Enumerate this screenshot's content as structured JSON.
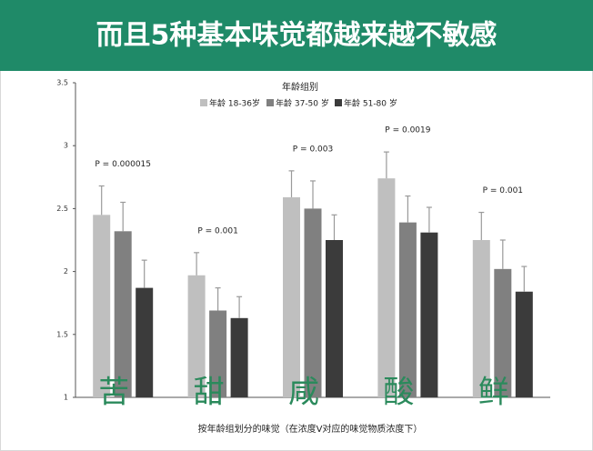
{
  "chart_data": {
    "type": "bar",
    "title": "而且5种基本味觉都越来越不敏感",
    "legend_title": "年龄组别",
    "xlabel": "按年龄组划分的味觉（在浓度V对应的味觉物质浓度下）",
    "categories": [
      "苦",
      "甜",
      "咸",
      "酸",
      "鲜"
    ],
    "annotations": [
      "P = 0.000015",
      "P = 0.001",
      "P = 0.003",
      "P = 0.0019",
      "P = 0.001"
    ],
    "series": [
      {
        "name": "年龄 18-36岁",
        "color": "#bfbfbf",
        "values": [
          2.45,
          1.97,
          2.59,
          2.74,
          2.25
        ],
        "errors": [
          0.23,
          0.18,
          0.21,
          0.21,
          0.22
        ]
      },
      {
        "name": "年龄 37-50 岁",
        "color": "#808080",
        "values": [
          2.32,
          1.69,
          2.5,
          2.39,
          2.02
        ],
        "errors": [
          0.23,
          0.18,
          0.22,
          0.21,
          0.23
        ]
      },
      {
        "name": "年龄 51-80 岁",
        "color": "#3b3b3b",
        "values": [
          1.87,
          1.63,
          2.25,
          2.31,
          1.84
        ],
        "errors": [
          0.22,
          0.17,
          0.2,
          0.2,
          0.2
        ]
      }
    ],
    "ylim": [
      1,
      3.5
    ],
    "yticks": [
      1,
      1.5,
      2,
      2.5,
      3,
      3.5
    ],
    "category_color": "#2b8a5c",
    "header_color": "#1f8a68"
  }
}
